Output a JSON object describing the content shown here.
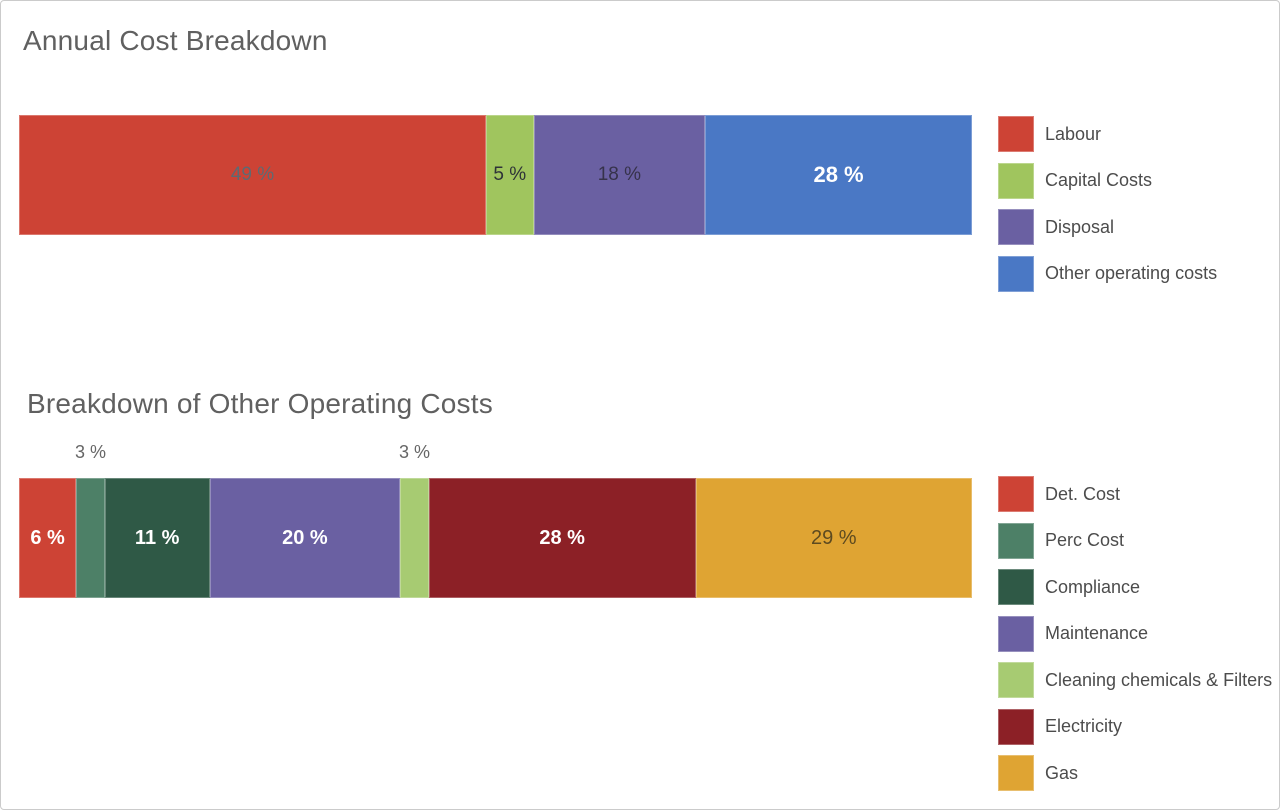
{
  "frame": {
    "background": "#FFFFFF",
    "border_color": "#CBCBCB",
    "title_color": "#606060",
    "legend_text_color": "#4C4C4C",
    "outside_label_color": "#666666"
  },
  "chart_data": [
    {
      "type": "bar",
      "variant": "horizontal-stacked-percentage",
      "title": "Annual Cost Breakdown",
      "unit": "%",
      "legend_position": "right",
      "grid": false,
      "axes_visible": false,
      "categories": [
        "Labour",
        "Capital Costs",
        "Disposal",
        "Other operating costs"
      ],
      "values": [
        49,
        5,
        18,
        28
      ],
      "data_labels": [
        "49 %",
        "5 %",
        "18 %",
        "28 %"
      ],
      "segments": [
        {
          "name": "Labour",
          "value": 49,
          "label": "49 %",
          "color": "#CD4335",
          "label_color": "#5E6A72",
          "label_position": "inside",
          "label_size": 19
        },
        {
          "name": "Capital Costs",
          "value": 5,
          "label": "5 %",
          "color": "#A0C55E",
          "label_color": "#2E3338",
          "label_position": "inside",
          "label_size": 19
        },
        {
          "name": "Disposal",
          "value": 18,
          "label": "18 %",
          "color": "#6A60A2",
          "label_color": "#36324A",
          "label_position": "inside",
          "label_size": 19
        },
        {
          "name": "Other operating costs",
          "value": 28,
          "label": "28 %",
          "color": "#4A78C5",
          "label_color": "#FFFFFF",
          "label_position": "inside",
          "label_size": 22
        }
      ]
    },
    {
      "type": "bar",
      "variant": "horizontal-stacked-percentage",
      "title": "Breakdown of Other Operating Costs",
      "unit": "%",
      "legend_position": "right",
      "grid": false,
      "axes_visible": false,
      "categories": [
        "Det. Cost",
        "Perc Cost",
        "Compliance",
        "Maintenance",
        "Cleaning chemicals & Filters",
        "Electricity",
        "Gas"
      ],
      "values": [
        6,
        3,
        11,
        20,
        3,
        28,
        29
      ],
      "data_labels": [
        "6 %",
        "3 %",
        "11 %",
        "20 %",
        "3 %",
        "28 %",
        "29 %"
      ],
      "segments": [
        {
          "name": "Det. Cost",
          "value": 6,
          "label": "6 %",
          "color": "#CD4335",
          "label_color": "#FFFFFF",
          "label_position": "inside",
          "label_size": 20
        },
        {
          "name": "Perc Cost",
          "value": 3,
          "label": "3 %",
          "color": "#4D8067",
          "label_color": "#666666",
          "label_position": "above",
          "label_size": 18
        },
        {
          "name": "Compliance",
          "value": 11,
          "label": "11 %",
          "color": "#2F5946",
          "label_color": "#FFFFFF",
          "label_position": "inside",
          "label_size": 20
        },
        {
          "name": "Maintenance",
          "value": 20,
          "label": "20 %",
          "color": "#6A60A2",
          "label_color": "#FFFFFF",
          "label_position": "inside",
          "label_size": 20
        },
        {
          "name": "Cleaning chemicals & Filters",
          "value": 3,
          "label": "3 %",
          "color": "#A7CB72",
          "label_color": "#666666",
          "label_position": "above",
          "label_size": 18
        },
        {
          "name": "Electricity",
          "value": 28,
          "label": "28 %",
          "color": "#8C2026",
          "label_color": "#FFFFFF",
          "label_position": "inside",
          "label_size": 20
        },
        {
          "name": "Gas",
          "value": 29,
          "label": "29 %",
          "color": "#DFA433",
          "label_color": "#5D4A20",
          "label_position": "inside",
          "label_size": 20
        }
      ]
    }
  ]
}
